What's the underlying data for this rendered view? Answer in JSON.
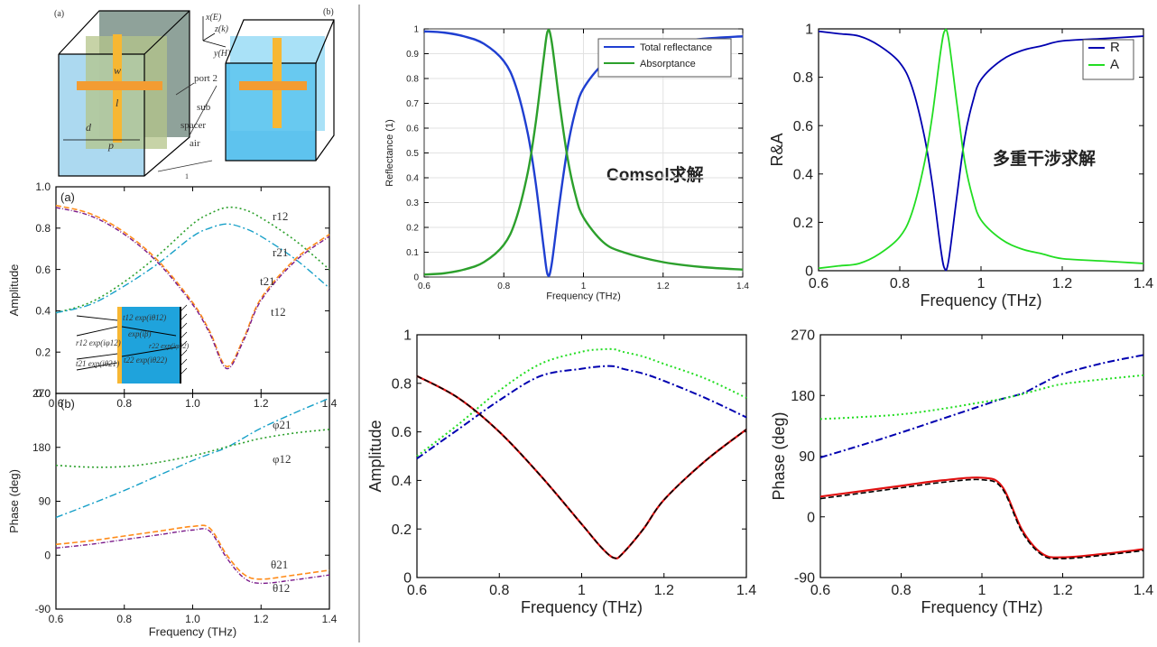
{
  "schematic": {
    "label_a": "(a)",
    "label_b": "(b)",
    "axis_x": "x(E)",
    "axis_z": "z(k)",
    "axis_y": "y(H)",
    "w": "w",
    "l": "l",
    "d": "d",
    "p": "p",
    "port2": "port 2",
    "sub": "sub",
    "spacer": "spacer",
    "air": "air",
    "port1": "1"
  },
  "inset": {
    "t12": "t12 exp(iθ12)",
    "r12": "r12 exp(iφ12)",
    "t21": "t21 exp(iθ21)",
    "expb": "exp(iβ)",
    "r22": "r22 exp(iφ22)",
    "t22": "t22 exp(iθ22)"
  },
  "colors": {
    "r12": "#2ca02c",
    "r21": "#17a0c8",
    "t21": "#ff8c1a",
    "t12": "#7a1a8a",
    "comsol_R": "#1f3fd1",
    "comsol_A": "#2ca02c",
    "mi_R": "#0000b0",
    "mi_A": "#22dd22",
    "calc_red": "#e01010",
    "calc_black": "#000000",
    "calc_green": "#22dd22",
    "calc_blue": "#0000b0"
  },
  "chart_data": [
    {
      "id": "paper_amp",
      "type": "line",
      "panel_label": "(a)",
      "xlabel": "",
      "ylabel": "Amplitude",
      "xlim": [
        0.6,
        1.4
      ],
      "ylim": [
        0.0,
        1.0
      ],
      "xticks": [
        "0.6",
        "0.8",
        "1.0",
        "1.2",
        "1.4"
      ],
      "yticks": [
        "0.0",
        "0.2",
        "0.4",
        "0.6",
        "0.8",
        "1.0"
      ],
      "x": [
        0.6,
        0.7,
        0.8,
        0.9,
        1.0,
        1.05,
        1.1,
        1.15,
        1.2,
        1.3,
        1.4
      ],
      "series": [
        {
          "name": "r12",
          "values": [
            0.39,
            0.44,
            0.54,
            0.67,
            0.82,
            0.87,
            0.9,
            0.89,
            0.85,
            0.74,
            0.6
          ]
        },
        {
          "name": "r21",
          "values": [
            0.39,
            0.43,
            0.52,
            0.63,
            0.76,
            0.8,
            0.82,
            0.8,
            0.76,
            0.65,
            0.51
          ]
        },
        {
          "name": "t21",
          "values": [
            0.91,
            0.87,
            0.78,
            0.64,
            0.44,
            0.3,
            0.13,
            0.27,
            0.46,
            0.65,
            0.77
          ]
        },
        {
          "name": "t12",
          "values": [
            0.9,
            0.86,
            0.77,
            0.63,
            0.43,
            0.29,
            0.12,
            0.26,
            0.45,
            0.64,
            0.76
          ]
        }
      ],
      "labels": [
        "r12",
        "r21",
        "t21",
        "t12"
      ]
    },
    {
      "id": "paper_phase",
      "type": "line",
      "panel_label": "(b)",
      "xlabel": "Frequency (THz)",
      "ylabel": "Phase (deg)",
      "xlim": [
        0.6,
        1.4
      ],
      "ylim": [
        -90,
        270
      ],
      "xticks": [
        "0.6",
        "0.8",
        "1.0",
        "1.2",
        "1.4"
      ],
      "yticks": [
        "-90",
        "0",
        "90",
        "180",
        "270"
      ],
      "x": [
        0.6,
        0.7,
        0.8,
        0.9,
        1.0,
        1.05,
        1.1,
        1.15,
        1.2,
        1.3,
        1.4
      ],
      "series": [
        {
          "name": "phi21",
          "values": [
            63,
            85,
            108,
            133,
            158,
            169,
            180,
            196,
            212,
            238,
            262
          ]
        },
        {
          "name": "phi12",
          "values": [
            150,
            147,
            148,
            155,
            166,
            173,
            181,
            188,
            195,
            204,
            210
          ]
        },
        {
          "name": "theta21",
          "values": [
            18,
            24,
            32,
            40,
            48,
            45,
            0,
            -32,
            -40,
            -33,
            -25
          ]
        },
        {
          "name": "theta12",
          "values": [
            12,
            18,
            26,
            34,
            42,
            40,
            -5,
            -38,
            -47,
            -41,
            -33
          ]
        }
      ],
      "labels": [
        "φ21",
        "φ12",
        "θ21",
        "θ12"
      ]
    },
    {
      "id": "comsol",
      "type": "line",
      "xlabel": "Frequency (THz)",
      "ylabel": "Reflectance (1)",
      "xlim": [
        0.6,
        1.4
      ],
      "ylim": [
        0,
        1
      ],
      "xticks": [
        "0.6",
        "0.8",
        "1",
        "1.2",
        "1.4"
      ],
      "yticks": [
        "0",
        "0.1",
        "0.2",
        "0.3",
        "0.4",
        "0.5",
        "0.6",
        "0.7",
        "0.8",
        "0.9",
        "1"
      ],
      "annotation": "Comsol求解",
      "legend": [
        "Total reflectance",
        "Absorptance"
      ],
      "x": [
        0.6,
        0.65,
        0.7,
        0.75,
        0.8,
        0.83,
        0.86,
        0.88,
        0.9,
        0.91,
        0.92,
        0.94,
        0.96,
        0.98,
        1.0,
        1.05,
        1.1,
        1.2,
        1.3,
        1.4
      ],
      "series": [
        {
          "name": "Total reflectance",
          "values": [
            0.99,
            0.985,
            0.97,
            0.94,
            0.87,
            0.77,
            0.58,
            0.38,
            0.12,
            0.01,
            0.05,
            0.3,
            0.52,
            0.67,
            0.76,
            0.86,
            0.9,
            0.94,
            0.96,
            0.97
          ]
        },
        {
          "name": "Absorptance",
          "values": [
            0.01,
            0.015,
            0.03,
            0.06,
            0.13,
            0.23,
            0.42,
            0.62,
            0.88,
            0.99,
            0.95,
            0.7,
            0.48,
            0.33,
            0.24,
            0.14,
            0.1,
            0.06,
            0.04,
            0.03
          ]
        }
      ]
    },
    {
      "id": "multi",
      "type": "line",
      "xlabel": "Frequency (THz)",
      "ylabel": "R&A",
      "xlim": [
        0.6,
        1.4
      ],
      "ylim": [
        0,
        1
      ],
      "xticks": [
        "0.6",
        "0.8",
        "1",
        "1.2",
        "1.4"
      ],
      "yticks": [
        "0",
        "0.2",
        "0.4",
        "0.6",
        "0.8",
        "1"
      ],
      "annotation": "多重干涉求解",
      "legend": [
        "R",
        "A"
      ],
      "x": [
        0.6,
        0.65,
        0.7,
        0.75,
        0.8,
        0.83,
        0.86,
        0.88,
        0.9,
        0.91,
        0.92,
        0.94,
        0.96,
        0.98,
        1.0,
        1.05,
        1.1,
        1.15,
        1.2,
        1.3,
        1.4
      ],
      "series": [
        {
          "name": "R",
          "values": [
            0.99,
            0.98,
            0.97,
            0.93,
            0.86,
            0.76,
            0.56,
            0.36,
            0.1,
            0.01,
            0.04,
            0.3,
            0.55,
            0.7,
            0.79,
            0.87,
            0.91,
            0.93,
            0.95,
            0.96,
            0.97
          ]
        },
        {
          "name": "A",
          "values": [
            0.01,
            0.02,
            0.03,
            0.07,
            0.14,
            0.24,
            0.44,
            0.64,
            0.9,
            0.99,
            0.96,
            0.7,
            0.45,
            0.3,
            0.21,
            0.13,
            0.09,
            0.07,
            0.05,
            0.04,
            0.03
          ]
        }
      ]
    },
    {
      "id": "calc_amp",
      "type": "line",
      "xlabel": "Frequency (THz)",
      "ylabel": "Amplitude",
      "xlim": [
        0.6,
        1.4
      ],
      "ylim": [
        0,
        1
      ],
      "xticks": [
        "0.6",
        "0.8",
        "1",
        "1.2",
        "1.4"
      ],
      "yticks": [
        "0",
        "0.2",
        "0.4",
        "0.6",
        "0.8",
        "1"
      ],
      "x": [
        0.6,
        0.7,
        0.8,
        0.9,
        1.0,
        1.05,
        1.08,
        1.1,
        1.15,
        1.2,
        1.3,
        1.4
      ],
      "series": [
        {
          "name": "green",
          "values": [
            0.5,
            0.63,
            0.77,
            0.88,
            0.93,
            0.94,
            0.94,
            0.93,
            0.91,
            0.88,
            0.82,
            0.74
          ]
        },
        {
          "name": "blue",
          "values": [
            0.49,
            0.61,
            0.73,
            0.83,
            0.86,
            0.87,
            0.87,
            0.86,
            0.84,
            0.81,
            0.74,
            0.66
          ]
        },
        {
          "name": "red",
          "values": [
            0.83,
            0.74,
            0.6,
            0.42,
            0.22,
            0.12,
            0.08,
            0.1,
            0.2,
            0.32,
            0.48,
            0.61
          ]
        },
        {
          "name": "black",
          "values": [
            0.83,
            0.74,
            0.6,
            0.42,
            0.22,
            0.12,
            0.08,
            0.1,
            0.2,
            0.32,
            0.48,
            0.61
          ]
        }
      ]
    },
    {
      "id": "calc_phase",
      "type": "line",
      "xlabel": "Frequency (THz)",
      "ylabel": "Phase (deg)",
      "xlim": [
        0.6,
        1.4
      ],
      "ylim": [
        -90,
        270
      ],
      "xticks": [
        "0.6",
        "0.8",
        "1",
        "1.2",
        "1.4"
      ],
      "yticks": [
        "-90",
        "0",
        "90",
        "180",
        "270"
      ],
      "x": [
        0.6,
        0.7,
        0.8,
        0.9,
        1.0,
        1.05,
        1.1,
        1.15,
        1.2,
        1.3,
        1.4
      ],
      "series": [
        {
          "name": "blue",
          "values": [
            88,
            106,
            125,
            145,
            165,
            175,
            183,
            198,
            212,
            228,
            240
          ]
        },
        {
          "name": "green",
          "values": [
            145,
            148,
            152,
            160,
            170,
            175,
            182,
            190,
            197,
            204,
            210
          ]
        },
        {
          "name": "red",
          "values": [
            30,
            38,
            46,
            54,
            58,
            45,
            -20,
            -55,
            -60,
            -55,
            -48
          ]
        },
        {
          "name": "black",
          "values": [
            27,
            35,
            43,
            51,
            55,
            42,
            -23,
            -57,
            -62,
            -57,
            -50
          ]
        }
      ]
    }
  ]
}
